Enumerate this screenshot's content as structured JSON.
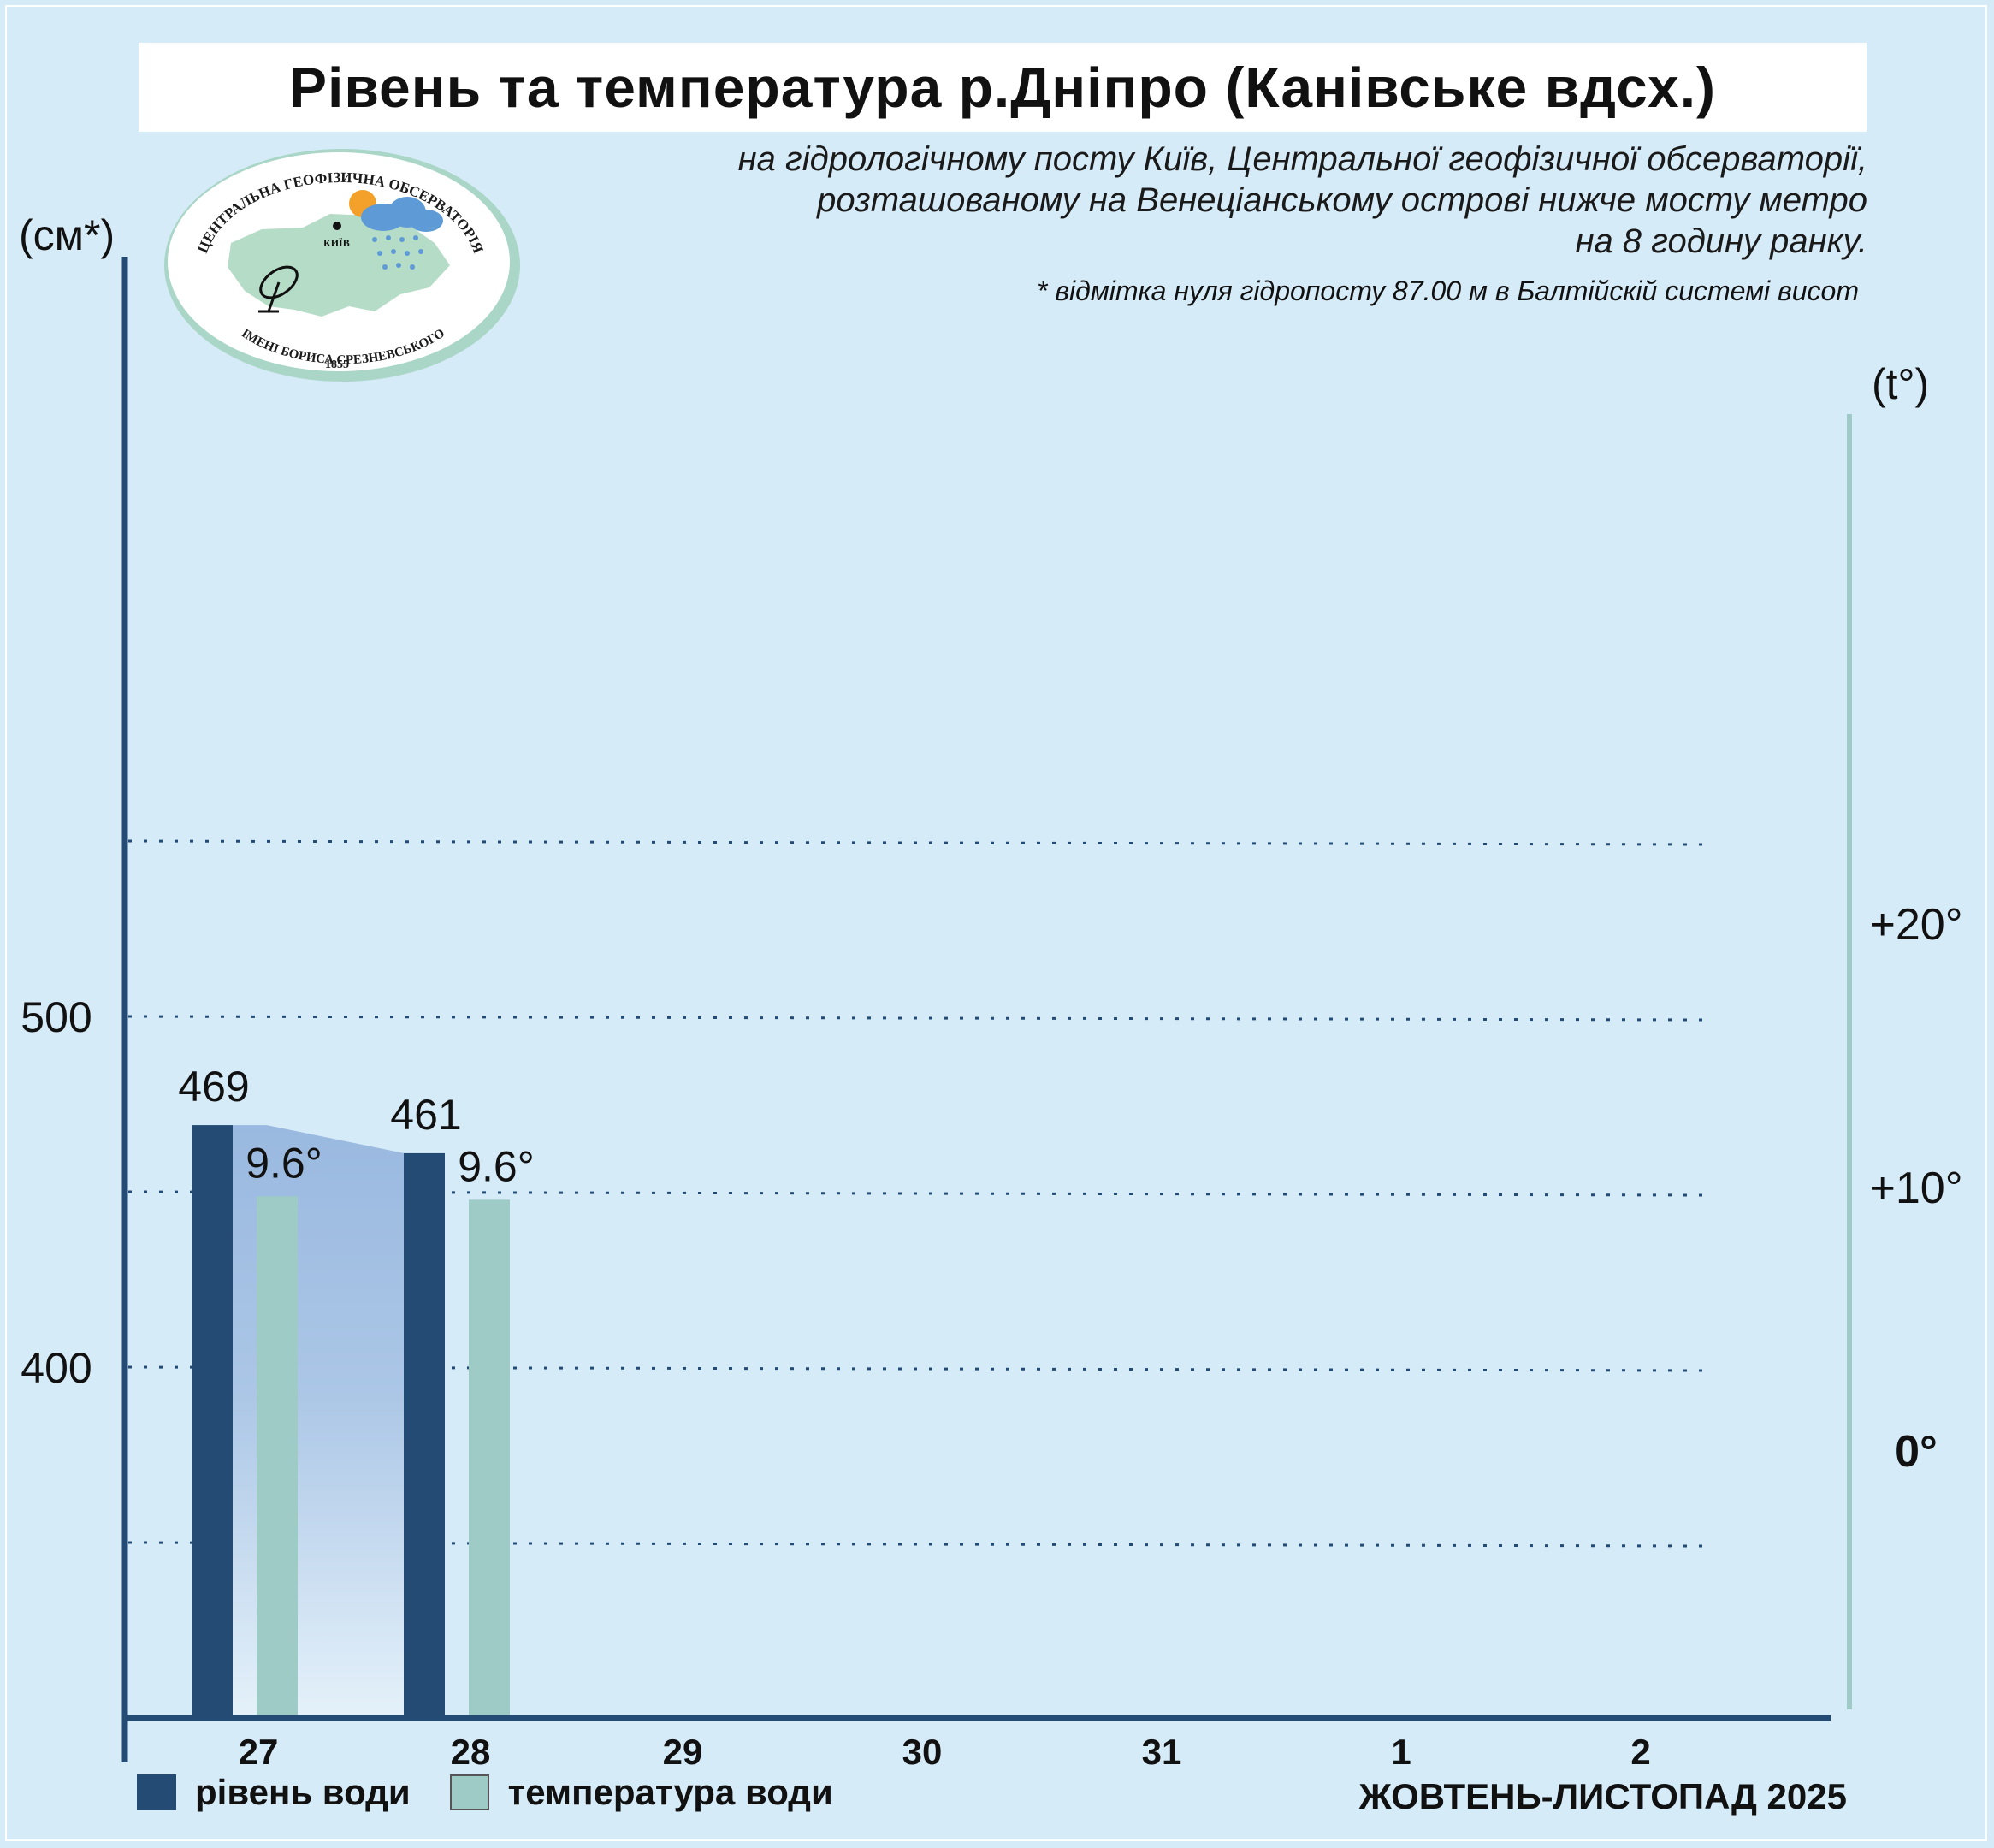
{
  "header": {
    "title": "Рівень та температура р.Дніпро (Канівське вдсх.)",
    "subtitle_lines": [
      "на гідрологічному посту Київ, Центральної геофізичної обсерваторії,",
      "розташованому на Венеціанському острові нижче мосту метро",
      "на 8 годину ранку."
    ],
    "footnote": "* відмітка нуля гідропосту 87.00 м в Балтійскій системі висот"
  },
  "logo": {
    "top_text": "ЦЕНТРАЛЬНА ГЕОФІЗИЧНА ОБСЕРВАТОРІЯ",
    "bottom_text": "ІМЕНІ БОРИСА СРЕЗНЕВСЬКОГО",
    "year": "1855",
    "city": "КИЇВ",
    "icons": [
      "ukraine-map-icon",
      "sun-icon",
      "rain-cloud-icon",
      "satellite-dish-icon"
    ]
  },
  "axes": {
    "left_unit": "(см*)",
    "right_unit": "(t°)",
    "left_ticks": [
      {
        "value": 400,
        "label": "400"
      },
      {
        "value": 500,
        "label": "500"
      }
    ],
    "right_ticks": [
      {
        "value": 0,
        "label": "0°"
      },
      {
        "value": 10,
        "label": "+10°"
      },
      {
        "value": 20,
        "label": "+20°"
      }
    ]
  },
  "chart_data": {
    "type": "bar",
    "categories": [
      "27",
      "28",
      "29",
      "30",
      "31",
      "1",
      "2"
    ],
    "series": [
      {
        "name": "рівень води",
        "axis": "left",
        "values": [
          469,
          461,
          null,
          null,
          null,
          null,
          null
        ],
        "labels": [
          "469",
          "461"
        ],
        "color": "#234b74"
      },
      {
        "name": "температура води",
        "axis": "right",
        "values": [
          9.6,
          9.6,
          null,
          null,
          null,
          null,
          null
        ],
        "labels": [
          "9.6°",
          "9.6°"
        ],
        "color": "#9ecbc6"
      }
    ],
    "left_ylim": [
      300,
      550
    ],
    "right_ylim": [
      -10,
      25
    ],
    "grid": "horizontal dotted",
    "legend_position": "bottom-left",
    "fill_between_level_bars": true
  },
  "period_label": "ЖОВТЕНЬ-ЛИСТОПАД 2025",
  "colors": {
    "background": "#d6ebf8",
    "level": "#234b74",
    "temperature": "#9ecbc6",
    "fill_top": "#9ab9e0",
    "axis": "#234b74"
  }
}
